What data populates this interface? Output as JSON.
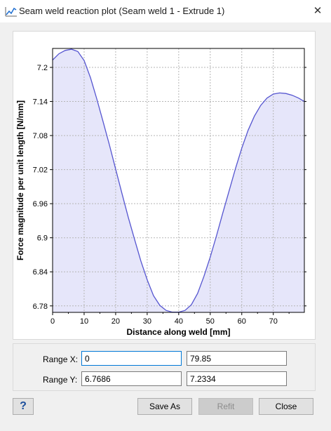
{
  "window": {
    "title": "Seam weld reaction plot (Seam weld 1 - Extrude 1)",
    "close_icon": "close-icon",
    "title_icon": "line-chart-icon"
  },
  "chart_data": {
    "type": "area",
    "xlabel": "Distance along weld [mm]",
    "ylabel": "Force magnitude per unit length [N/mm]",
    "xlim": [
      0,
      79.85
    ],
    "ylim": [
      6.7686,
      7.2334
    ],
    "x_ticks": [
      "0",
      "10",
      "20",
      "30",
      "40",
      "50",
      "60",
      "70"
    ],
    "x_tick_values": [
      0,
      10,
      20,
      30,
      40,
      50,
      60,
      70
    ],
    "y_ticks": [
      "7.2",
      "7.14",
      "7.08",
      "7.02",
      "6.96",
      "6.9",
      "6.84",
      "6.78"
    ],
    "y_tick_values": [
      7.2,
      7.14,
      7.08,
      7.02,
      6.96,
      6.9,
      6.84,
      6.78
    ],
    "grid": true,
    "line_color": "#5555d0",
    "fill_color": "#e6e6fa",
    "x": [
      0,
      2,
      4,
      6,
      8,
      10,
      12,
      14,
      16,
      18,
      20,
      22,
      24,
      26,
      28,
      30,
      32,
      34,
      36,
      38,
      40,
      42,
      44,
      46,
      48,
      50,
      52,
      54,
      56,
      58,
      60,
      62,
      64,
      66,
      68,
      70,
      72,
      74,
      76,
      78,
      79.85
    ],
    "y": [
      7.213,
      7.224,
      7.23,
      7.232,
      7.228,
      7.212,
      7.182,
      7.145,
      7.105,
      7.064,
      7.021,
      6.978,
      6.936,
      6.897,
      6.859,
      6.826,
      6.798,
      6.781,
      6.772,
      6.769,
      6.769,
      6.772,
      6.782,
      6.802,
      6.832,
      6.866,
      6.904,
      6.944,
      6.983,
      7.022,
      7.058,
      7.089,
      7.114,
      7.133,
      7.146,
      7.153,
      7.155,
      7.154,
      7.151,
      7.146,
      7.14
    ]
  },
  "range": {
    "x_label": "Range X:",
    "x_min": "0",
    "x_max": "79.85",
    "y_label": "Range Y:",
    "y_min": "6.7686",
    "y_max": "7.2334"
  },
  "buttons": {
    "help": "?",
    "save_as": "Save As",
    "refit": "Refit",
    "close": "Close"
  }
}
